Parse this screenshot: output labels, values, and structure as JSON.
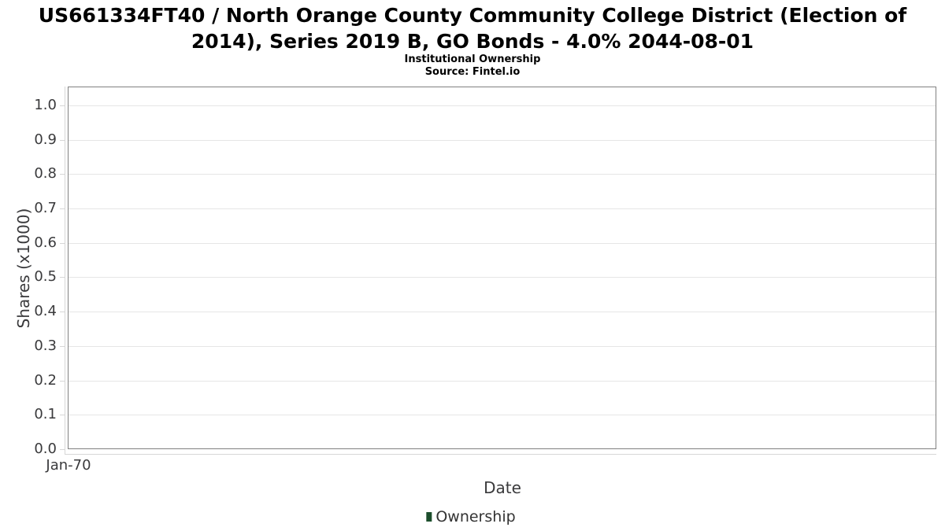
{
  "title": {
    "line1": "US661334FT40 / North Orange County Community College District (Election of",
    "line2": "2014), Series 2019 B, GO Bonds - 4.0% 2044-08-01",
    "full": "US661334FT40 / North Orange County Community College District (Election of 2014), Series 2019 B, GO Bonds - 4.0% 2044-08-01"
  },
  "subtitle": "Institutional Ownership",
  "source": "Source: Fintel.io",
  "chart_data": {
    "type": "line",
    "title": "US661334FT40 / North Orange County Community College District (Election of 2014), Series 2019 B, GO Bonds - 4.0% 2044-08-01",
    "subtitle": "Institutional Ownership",
    "source": "Source: Fintel.io",
    "xlabel": "Date",
    "ylabel": "Shares (x1000)",
    "x_ticks": [
      "Jan-70"
    ],
    "y_ticks": [
      "1.0",
      "0.9",
      "0.8",
      "0.7",
      "0.6",
      "0.5",
      "0.4",
      "0.3",
      "0.2",
      "0.1",
      "0.0"
    ],
    "ylim": [
      0.0,
      1.05
    ],
    "grid": "horizontal-only",
    "legend_position": "bottom-center",
    "series": [
      {
        "name": "Ownership",
        "color": "#1c4e2c",
        "x": [],
        "values": []
      }
    ]
  },
  "legend": {
    "items": [
      {
        "label": "Ownership",
        "color": "#1c4e2c"
      }
    ]
  },
  "colors": {
    "plot_border": "#808080",
    "gridline": "#e6e6e6",
    "axis_line": "#d6d6d6",
    "axis_text": "#3a3a3c",
    "title_text": "#000000",
    "legend_text": "#333333",
    "series_green": "#1c4e2c",
    "background": "#ffffff"
  }
}
